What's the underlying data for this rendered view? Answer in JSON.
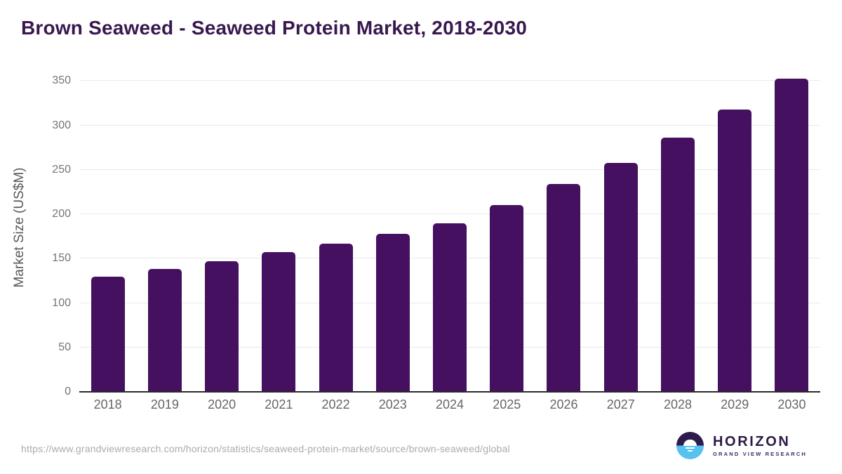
{
  "title": "Brown Seaweed - Seaweed Protein Market, 2018-2030",
  "chart_data": {
    "type": "bar",
    "title": "Brown Seaweed - Seaweed Protein Market, 2018-2030",
    "categories": [
      "2018",
      "2019",
      "2020",
      "2021",
      "2022",
      "2023",
      "2024",
      "2025",
      "2026",
      "2027",
      "2028",
      "2029",
      "2030"
    ],
    "values": [
      130,
      138,
      147,
      157,
      167,
      178,
      190,
      210,
      234,
      258,
      286,
      318,
      353
    ],
    "xlabel": "",
    "ylabel": "Market Size (US$M)",
    "ylim": [
      0,
      350
    ],
    "yticks": [
      0,
      50,
      100,
      150,
      200,
      250,
      300,
      350
    ],
    "grid": true,
    "legend": "none",
    "bar_color": "#45105F"
  },
  "colors": {
    "bar": "#45105F",
    "title_text": "#38184F",
    "axis_line": "#2B2B2B",
    "gridline": "#E9E9E9",
    "tick_label": "#757575",
    "x_label": "#666666",
    "y_axis_title": "#595959",
    "footer_url_text": "#ABABAB",
    "logo_navy": "#2D1B4D",
    "logo_blue": "#56C2F0",
    "logo_name_text": "#2E1A47",
    "logo_tagline_text": "#3F2A68"
  },
  "footer": {
    "source_url": "https://www.grandviewresearch.com/horizon/statistics/seaweed-protein-market/source/brown-seaweed/global",
    "logo": {
      "name": "HORIZON",
      "tagline": "GRAND VIEW RESEARCH",
      "mark": "horizon-sun-over-water-icon"
    }
  }
}
